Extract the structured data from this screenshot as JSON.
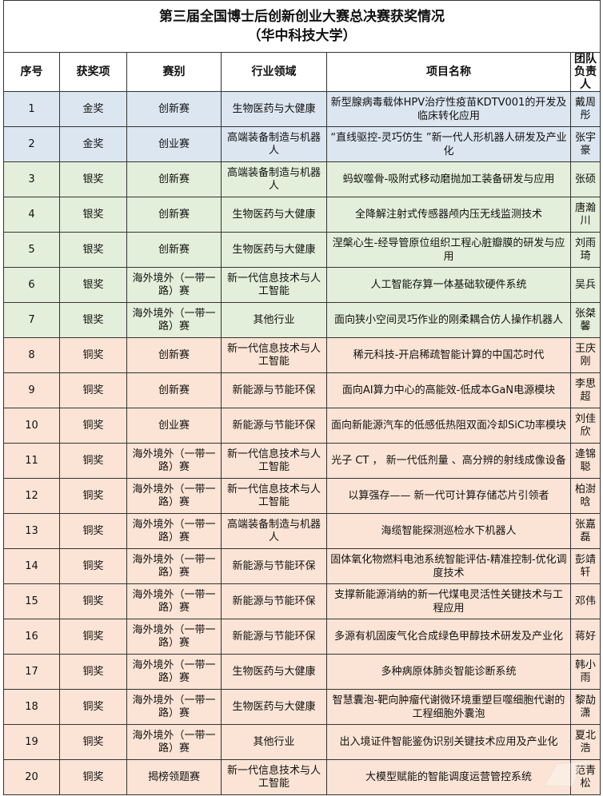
{
  "title": {
    "line1": "第三届全国博士后创新创业大赛总决赛获奖情况",
    "line2": "（华中科技大学）"
  },
  "headers": [
    "序号",
    "获奖项",
    "赛别",
    "行业领域",
    "项目名称",
    "团队负责人"
  ],
  "colors": {
    "gold_row": "#dce6f1",
    "silver_row": "#e3efda",
    "bronze_row": "#fbe4d5"
  },
  "rows": [
    {
      "no": "1",
      "award": "金奖",
      "track": "创新赛",
      "field": "生物医药与大健康",
      "project": "新型腺病毒载体HPV治疗性疫苗KDTV001的开发及临床转化应用",
      "leader": "戴周彤",
      "tier": "gold"
    },
    {
      "no": "2",
      "award": "金奖",
      "track": "创业赛",
      "field": "高端装备制造与机器人",
      "project": "“直线驱控-灵巧仿生 ”新一代人形机器人研发及产业化",
      "leader": "张宇豪",
      "tier": "gold"
    },
    {
      "no": "3",
      "award": "银奖",
      "track": "创新赛",
      "field": "高端装备制造与机器人",
      "project": "蚂蚁噬骨-吸附式移动磨抛加工装备研发与应用",
      "leader": "张硕",
      "tier": "silver"
    },
    {
      "no": "4",
      "award": "银奖",
      "track": "创新赛",
      "field": "生物医药与大健康",
      "project": "全降解注射式传感器颅内压无线监测技术",
      "leader": "唐瀚川",
      "tier": "silver"
    },
    {
      "no": "5",
      "award": "银奖",
      "track": "创新赛",
      "field": "生物医药与大健康",
      "project": "涅槃心生-经导管原位组织工程心脏瓣膜的研发与应用",
      "leader": "刘雨琦",
      "tier": "silver"
    },
    {
      "no": "6",
      "award": "银奖",
      "track": "海外境外（一带一路）赛",
      "field": "新一代信息技术与人工智能",
      "project": "人工智能存算一体基础软硬件系统",
      "leader": "吴兵",
      "tier": "silver"
    },
    {
      "no": "7",
      "award": "银奖",
      "track": "海外境外（一带一路）赛",
      "field": "其他行业",
      "project": "面向狭小空间灵巧作业的刚柔耦合仿人操作机器人",
      "leader": "张桀馨",
      "tier": "silver"
    },
    {
      "no": "8",
      "award": "铜奖",
      "track": "创新赛",
      "field": "新一代信息技术与人工智能",
      "project": "稀元科技-开启稀疏智能计算的中国芯时代",
      "leader": "王庆刚",
      "tier": "bronze"
    },
    {
      "no": "9",
      "award": "铜奖",
      "track": "创新赛",
      "field": "新能源与节能环保",
      "project": "面向AI算力中心的高能效-低成本GaN电源模块",
      "leader": "李思超",
      "tier": "bronze"
    },
    {
      "no": "10",
      "award": "铜奖",
      "track": "创业赛",
      "field": "新能源与节能环保",
      "project": "面向新能源汽车的低感低热阻双面冷却SiC功率模块",
      "leader": "刘佳欣",
      "tier": "bronze"
    },
    {
      "no": "11",
      "award": "铜奖",
      "track": "海外境外（一带一路）赛",
      "field": "新一代信息技术与人工智能",
      "project": "光子 CT ，  新一代低剂量 、高分辨的射线成像设备",
      "leader": "逄锦聪",
      "tier": "bronze"
    },
    {
      "no": "12",
      "award": "铜奖",
      "track": "海外境外（一带一路）赛",
      "field": "新一代信息技术与人工智能",
      "project": "以算强存—— 新一代可计算存储芯片引领者",
      "leader": "柏澍晗",
      "tier": "bronze"
    },
    {
      "no": "13",
      "award": "铜奖",
      "track": "海外境外（一带一路）赛",
      "field": "高端装备制造与机器人",
      "project": "海缆智能探测巡检水下机器人",
      "leader": "张嘉磊",
      "tier": "bronze"
    },
    {
      "no": "14",
      "award": "铜奖",
      "track": "海外境外（一带一路）赛",
      "field": "新能源与节能环保",
      "project": "固体氧化物燃料电池系统智能评估-精准控制-优化调度技术",
      "leader": "彭靖轩",
      "tier": "bronze"
    },
    {
      "no": "15",
      "award": "铜奖",
      "track": "海外境外（一带一路）赛",
      "field": "新能源与节能环保",
      "project": "支撑新能源消纳的新一代煤电灵活性关键技术与工程应用",
      "leader": "邓伟",
      "tier": "bronze"
    },
    {
      "no": "16",
      "award": "铜奖",
      "track": "海外境外（一带一路）赛",
      "field": "新能源与节能环保",
      "project": "多源有机固废气化合成绿色甲醇技术研发及产业化",
      "leader": "蒋好",
      "tier": "bronze"
    },
    {
      "no": "17",
      "award": "铜奖",
      "track": "海外境外（一带一路）赛",
      "field": "生物医药与大健康",
      "project": "多种病原体肺炎智能诊断系统",
      "leader": "韩小雨",
      "tier": "bronze"
    },
    {
      "no": "18",
      "award": "铜奖",
      "track": "海外境外（一带一路）赛",
      "field": "生物医药与大健康",
      "project": "智慧囊泡-靶向肿瘤代谢微环境重塑巨噬细胞代谢的工程细胞外囊泡",
      "leader": "黎劼潇",
      "tier": "bronze"
    },
    {
      "no": "19",
      "award": "铜奖",
      "track": "海外境外（一带一路）赛",
      "field": "其他行业",
      "project": "出入境证件智能鉴伪识别关键技术应用及产业化",
      "leader": "夏北浩",
      "tier": "bronze"
    },
    {
      "no": "20",
      "award": "铜奖",
      "track": "揭榜领题赛",
      "field": "新一代信息技术与人工智能",
      "project": "大模型赋能的智能调度运营管控系统",
      "leader": "范青松",
      "tier": "bronze"
    }
  ]
}
